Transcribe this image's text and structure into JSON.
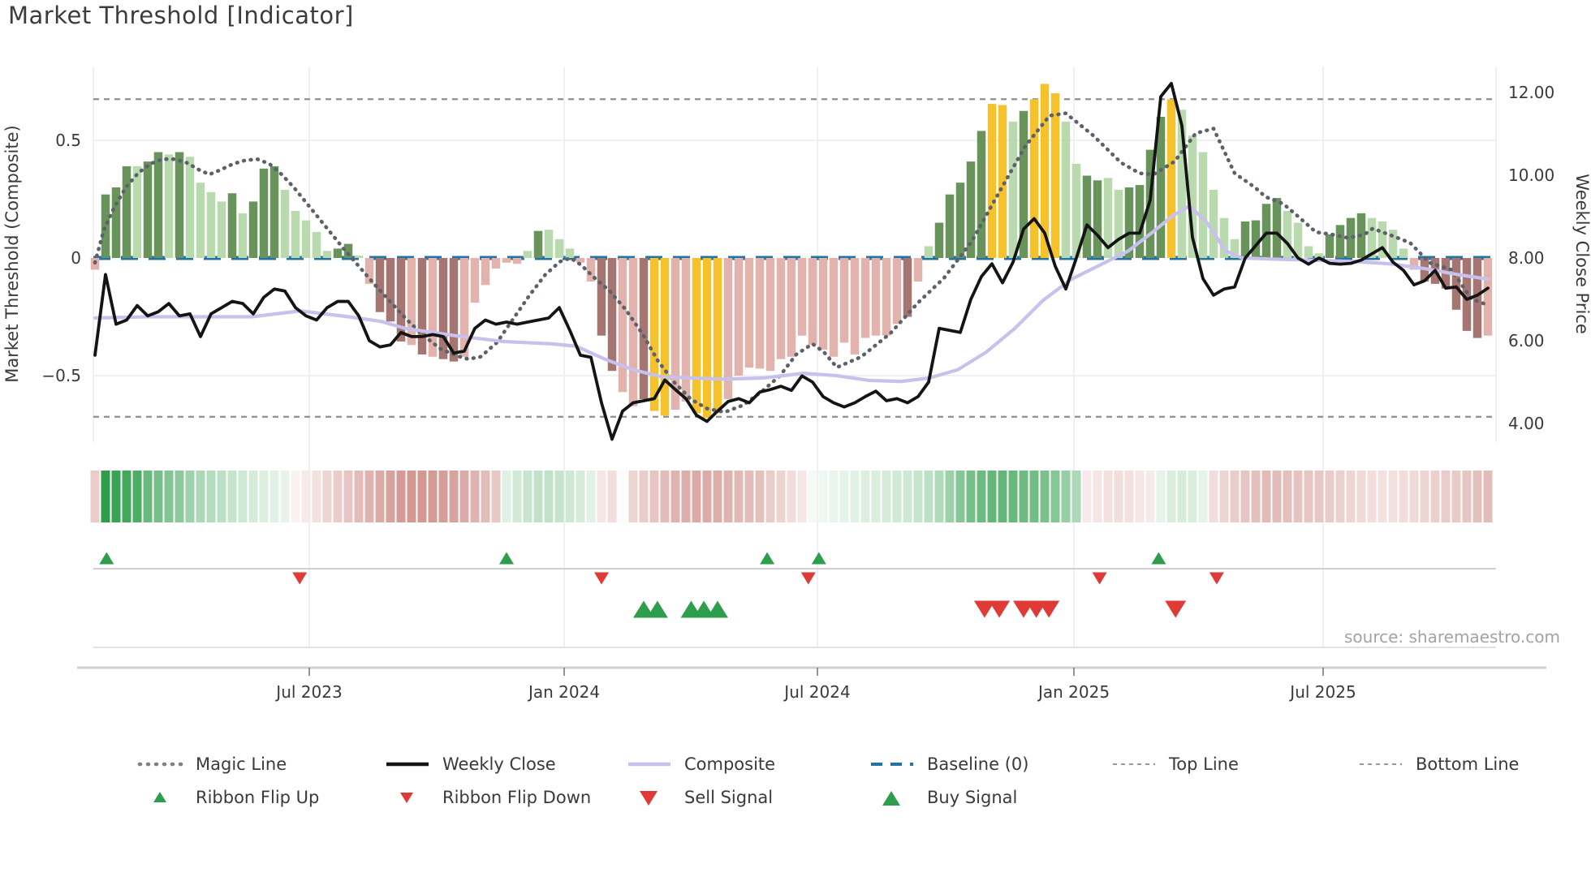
{
  "title": "Market Threshold [Indicator]",
  "source": "source: sharemaestro.com",
  "axes": {
    "left_label": "Market Threshold (Composite)",
    "right_label": "Weekly Close Price",
    "left_ticks": [
      "0.5",
      "0",
      "−0.5"
    ],
    "right_ticks": [
      "12.00",
      "10.00",
      "8.00",
      "6.00",
      "4.00"
    ],
    "x_ticks": [
      "Jul 2023",
      "Jan 2024",
      "Jul 2024",
      "Jan 2025",
      "Jul 2025"
    ]
  },
  "colors": {
    "bar_dark_green": "#68945c",
    "bar_light_green": "#b9d9ae",
    "bar_yellow": "#f6c22b",
    "bar_dark_red": "#a57571",
    "bar_light_pink": "#e2b3ad",
    "baseline_blue": "#2374a5",
    "weekly_close": "#141414",
    "composite": "#c8c1ee",
    "magic": "#5d6169",
    "top_bottom": "#8f8f8f",
    "grid": "#ebebf0",
    "spine": "#cfcfcf",
    "ribbon_green": "#2f9e4a",
    "ribbon_pink": "#c87f78",
    "signal_green": "#2e9e4c",
    "signal_red": "#e03a36",
    "text": "#3a3a3a"
  },
  "legend": {
    "row1": [
      {
        "label": "Magic Line",
        "swatch": "dotted-gray"
      },
      {
        "label": "Weekly Close",
        "swatch": "solid-black"
      },
      {
        "label": "Composite",
        "swatch": "solid-lavender"
      },
      {
        "label": "Baseline (0)",
        "swatch": "dashed-blue"
      },
      {
        "label": "Top Line",
        "swatch": "dashed-gray"
      },
      {
        "label": "Bottom Line",
        "swatch": "dashed-gray"
      }
    ],
    "row2": [
      {
        "label": "Ribbon Flip Up",
        "swatch": "triangle-up-green-small"
      },
      {
        "label": "Ribbon Flip Down",
        "swatch": "triangle-down-red-small"
      },
      {
        "label": "Sell Signal",
        "swatch": "triangle-down-red-large"
      },
      {
        "label": "Buy Signal",
        "swatch": "triangle-up-green-large"
      }
    ]
  },
  "chart_data": {
    "type": "combo-bar-line",
    "x_axis": {
      "tick_labels": [
        "Jul 2023",
        "Jan 2024",
        "Jul 2024",
        "Jan 2025",
        "Jul 2025"
      ],
      "unit": "weeks"
    },
    "ylim_left_composite": [
      -0.78,
      0.81
    ],
    "ylim_right_price": [
      3.55,
      12.63
    ],
    "baseline": 0,
    "top_line": 0.675,
    "bottom_line": -0.675,
    "bar_color_key": {
      "dg": "dark-green",
      "lg": "light-green",
      "y": "yellow-signal",
      "dr": "dark-red",
      "lr": "light-pink"
    },
    "bars": [
      [
        -0.05,
        "lr"
      ],
      [
        0.27,
        "dg"
      ],
      [
        0.3,
        "dg"
      ],
      [
        0.39,
        "dg"
      ],
      [
        0.39,
        "lg"
      ],
      [
        0.41,
        "dg"
      ],
      [
        0.45,
        "dg"
      ],
      [
        0.44,
        "lg"
      ],
      [
        0.45,
        "dg"
      ],
      [
        0.43,
        "lg"
      ],
      [
        0.32,
        "lg"
      ],
      [
        0.28,
        "lg"
      ],
      [
        0.24,
        "lg"
      ],
      [
        0.275,
        "dg"
      ],
      [
        0.19,
        "lg"
      ],
      [
        0.24,
        "dg"
      ],
      [
        0.38,
        "dg"
      ],
      [
        0.39,
        "dg"
      ],
      [
        0.29,
        "lg"
      ],
      [
        0.2,
        "lg"
      ],
      [
        0.16,
        "lg"
      ],
      [
        0.11,
        "lg"
      ],
      [
        0.03,
        "lg"
      ],
      [
        0.04,
        "dg"
      ],
      [
        0.06,
        "dg"
      ],
      [
        0.01,
        "lg"
      ],
      [
        -0.11,
        "lr"
      ],
      [
        -0.23,
        "dr"
      ],
      [
        -0.27,
        "dr"
      ],
      [
        -0.355,
        "dr"
      ],
      [
        -0.37,
        "lr"
      ],
      [
        -0.41,
        "dr"
      ],
      [
        -0.42,
        "lr"
      ],
      [
        -0.43,
        "dr"
      ],
      [
        -0.44,
        "dr"
      ],
      [
        -0.42,
        "lr"
      ],
      [
        -0.19,
        "lr"
      ],
      [
        -0.115,
        "lr"
      ],
      [
        -0.045,
        "lr"
      ],
      [
        -0.02,
        "lr"
      ],
      [
        -0.025,
        "lr"
      ],
      [
        0.03,
        "lg"
      ],
      [
        0.115,
        "dg"
      ],
      [
        0.12,
        "lg"
      ],
      [
        0.08,
        "lg"
      ],
      [
        0.04,
        "lg"
      ],
      [
        -0.02,
        "lr"
      ],
      [
        -0.1,
        "lr"
      ],
      [
        -0.33,
        "dr"
      ],
      [
        -0.48,
        "dr"
      ],
      [
        -0.57,
        "lr"
      ],
      [
        -0.63,
        "lr"
      ],
      [
        -0.6,
        "dr"
      ],
      [
        -0.65,
        "y"
      ],
      [
        -0.67,
        "y"
      ],
      [
        -0.645,
        "lr"
      ],
      [
        -0.61,
        "lr"
      ],
      [
        -0.66,
        "y"
      ],
      [
        -0.68,
        "y"
      ],
      [
        -0.66,
        "y"
      ],
      [
        -0.6,
        "lr"
      ],
      [
        -0.5,
        "lr"
      ],
      [
        -0.466,
        "lr"
      ],
      [
        -0.47,
        "lr"
      ],
      [
        -0.48,
        "lr"
      ],
      [
        -0.43,
        "lr"
      ],
      [
        -0.42,
        "lr"
      ],
      [
        -0.33,
        "lr"
      ],
      [
        -0.37,
        "lr"
      ],
      [
        -0.39,
        "lr"
      ],
      [
        -0.42,
        "lr"
      ],
      [
        -0.36,
        "lr"
      ],
      [
        -0.41,
        "lr"
      ],
      [
        -0.34,
        "lr"
      ],
      [
        -0.33,
        "lr"
      ],
      [
        -0.33,
        "lr"
      ],
      [
        -0.28,
        "lr"
      ],
      [
        -0.25,
        "dr"
      ],
      [
        -0.1,
        "lr"
      ],
      [
        0.05,
        "lg"
      ],
      [
        0.15,
        "dg"
      ],
      [
        0.27,
        "dg"
      ],
      [
        0.32,
        "dg"
      ],
      [
        0.41,
        "dg"
      ],
      [
        0.54,
        "dg"
      ],
      [
        0.655,
        "y"
      ],
      [
        0.65,
        "y"
      ],
      [
        0.58,
        "lg"
      ],
      [
        0.625,
        "dg"
      ],
      [
        0.675,
        "y"
      ],
      [
        0.74,
        "y"
      ],
      [
        0.7,
        "y"
      ],
      [
        0.58,
        "lg"
      ],
      [
        0.4,
        "lg"
      ],
      [
        0.35,
        "dg"
      ],
      [
        0.33,
        "dg"
      ],
      [
        0.34,
        "lg"
      ],
      [
        0.29,
        "lg"
      ],
      [
        0.3,
        "dg"
      ],
      [
        0.31,
        "dg"
      ],
      [
        0.46,
        "dg"
      ],
      [
        0.6,
        "dg"
      ],
      [
        0.675,
        "y"
      ],
      [
        0.63,
        "lg"
      ],
      [
        0.52,
        "lg"
      ],
      [
        0.45,
        "lg"
      ],
      [
        0.29,
        "lg"
      ],
      [
        0.17,
        "lg"
      ],
      [
        0.08,
        "lg"
      ],
      [
        0.155,
        "dg"
      ],
      [
        0.16,
        "dg"
      ],
      [
        0.23,
        "dg"
      ],
      [
        0.255,
        "dg"
      ],
      [
        0.2,
        "lg"
      ],
      [
        0.15,
        "lg"
      ],
      [
        0.05,
        "lg"
      ],
      [
        0.02,
        "lg"
      ],
      [
        0.1,
        "dg"
      ],
      [
        0.14,
        "dg"
      ],
      [
        0.17,
        "dg"
      ],
      [
        0.19,
        "dg"
      ],
      [
        0.17,
        "lg"
      ],
      [
        0.155,
        "lg"
      ],
      [
        0.12,
        "lg"
      ],
      [
        0.04,
        "lg"
      ],
      [
        -0.05,
        "lr"
      ],
      [
        -0.1,
        "dr"
      ],
      [
        -0.11,
        "dr"
      ],
      [
        -0.13,
        "dr"
      ],
      [
        -0.22,
        "dr"
      ],
      [
        -0.31,
        "dr"
      ],
      [
        -0.34,
        "dr"
      ],
      [
        -0.33,
        "lr"
      ]
    ],
    "weekly_close": [
      5.65,
      7.6,
      6.4,
      6.5,
      6.85,
      6.6,
      6.7,
      6.9,
      6.6,
      6.65,
      6.1,
      6.65,
      6.8,
      6.95,
      6.9,
      6.65,
      7.05,
      7.25,
      7.2,
      6.8,
      6.6,
      6.5,
      6.8,
      6.95,
      6.95,
      6.6,
      6.0,
      5.85,
      5.9,
      6.2,
      6.1,
      6.1,
      6.15,
      6.1,
      5.7,
      5.75,
      6.3,
      6.5,
      6.4,
      6.45,
      6.4,
      6.45,
      6.5,
      6.55,
      6.8,
      6.25,
      5.65,
      5.6,
      4.5,
      3.62,
      4.3,
      4.5,
      4.55,
      4.6,
      5.05,
      4.82,
      4.6,
      4.2,
      4.05,
      4.3,
      4.53,
      4.6,
      4.5,
      4.76,
      4.82,
      4.9,
      4.8,
      5.15,
      5.0,
      4.65,
      4.5,
      4.4,
      4.5,
      4.65,
      4.78,
      4.55,
      4.6,
      4.5,
      4.65,
      5.0,
      6.3,
      6.25,
      6.2,
      7.0,
      7.55,
      7.86,
      7.4,
      7.9,
      8.7,
      8.95,
      8.6,
      7.8,
      7.25,
      8.0,
      8.8,
      8.55,
      8.25,
      8.45,
      8.6,
      8.6,
      9.4,
      11.9,
      12.22,
      11.2,
      8.5,
      7.5,
      7.1,
      7.25,
      7.3,
      8.0,
      8.3,
      8.6,
      8.6,
      8.35,
      8.0,
      7.85,
      8.0,
      7.87,
      7.85,
      7.87,
      7.95,
      8.1,
      8.25,
      7.9,
      7.7,
      7.35,
      7.45,
      7.7,
      7.27,
      7.3,
      7.0,
      7.1,
      7.27
    ],
    "composite_points": [
      [
        117,
        -0.255
      ],
      [
        180,
        -0.25
      ],
      [
        260,
        -0.25
      ],
      [
        310,
        -0.25
      ],
      [
        370,
        -0.225
      ],
      [
        430,
        -0.25
      ],
      [
        470,
        -0.27
      ],
      [
        500,
        -0.3
      ],
      [
        560,
        -0.33
      ],
      [
        620,
        -0.355
      ],
      [
        680,
        -0.365
      ],
      [
        710,
        -0.375
      ],
      [
        745,
        -0.43
      ],
      [
        780,
        -0.475
      ],
      [
        815,
        -0.505
      ],
      [
        850,
        -0.51
      ],
      [
        890,
        -0.515
      ],
      [
        940,
        -0.51
      ],
      [
        990,
        -0.49
      ],
      [
        1030,
        -0.5
      ],
      [
        1070,
        -0.52
      ],
      [
        1110,
        -0.525
      ],
      [
        1145,
        -0.51
      ],
      [
        1180,
        -0.475
      ],
      [
        1215,
        -0.4
      ],
      [
        1250,
        -0.3
      ],
      [
        1285,
        -0.18
      ],
      [
        1320,
        -0.09
      ],
      [
        1355,
        -0.03
      ],
      [
        1390,
        0.03
      ],
      [
        1420,
        0.11
      ],
      [
        1445,
        0.18
      ],
      [
        1465,
        0.22
      ],
      [
        1485,
        0.16
      ],
      [
        1510,
        0.03
      ],
      [
        1530,
        0.0
      ],
      [
        1570,
        -0.005
      ],
      [
        1620,
        -0.01
      ],
      [
        1670,
        -0.015
      ],
      [
        1713,
        -0.025
      ],
      [
        1755,
        -0.045
      ],
      [
        1795,
        -0.07
      ],
      [
        1833,
        -0.09
      ]
    ],
    "magic_points": [
      [
        117,
        -0.02
      ],
      [
        128,
        0.12
      ],
      [
        140,
        0.21
      ],
      [
        155,
        0.3
      ],
      [
        170,
        0.36
      ],
      [
        185,
        0.4
      ],
      [
        200,
        0.42
      ],
      [
        215,
        0.42
      ],
      [
        230,
        0.405
      ],
      [
        245,
        0.375
      ],
      [
        258,
        0.355
      ],
      [
        272,
        0.375
      ],
      [
        287,
        0.4
      ],
      [
        302,
        0.415
      ],
      [
        317,
        0.42
      ],
      [
        332,
        0.4
      ],
      [
        347,
        0.355
      ],
      [
        362,
        0.3
      ],
      [
        382,
        0.215
      ],
      [
        402,
        0.13
      ],
      [
        422,
        0.045
      ],
      [
        442,
        -0.035
      ],
      [
        462,
        -0.115
      ],
      [
        482,
        -0.19
      ],
      [
        502,
        -0.265
      ],
      [
        522,
        -0.33
      ],
      [
        542,
        -0.385
      ],
      [
        562,
        -0.415
      ],
      [
        577,
        -0.43
      ],
      [
        592,
        -0.42
      ],
      [
        612,
        -0.36
      ],
      [
        632,
        -0.26
      ],
      [
        652,
        -0.16
      ],
      [
        672,
        -0.07
      ],
      [
        690,
        -0.015
      ],
      [
        703,
        0.0
      ],
      [
        716,
        -0.03
      ],
      [
        731,
        -0.08
      ],
      [
        751,
        -0.14
      ],
      [
        771,
        -0.22
      ],
      [
        791,
        -0.32
      ],
      [
        811,
        -0.44
      ],
      [
        831,
        -0.53
      ],
      [
        851,
        -0.6
      ],
      [
        871,
        -0.64
      ],
      [
        893,
        -0.655
      ],
      [
        916,
        -0.625
      ],
      [
        941,
        -0.56
      ],
      [
        961,
        -0.5
      ],
      [
        981,
        -0.41
      ],
      [
        1001,
        -0.365
      ],
      [
        1015,
        -0.4
      ],
      [
        1031,
        -0.465
      ],
      [
        1061,
        -0.42
      ],
      [
        1097,
        -0.32
      ],
      [
        1131,
        -0.19
      ],
      [
        1163,
        -0.085
      ],
      [
        1197,
        0.07
      ],
      [
        1231,
        0.28
      ],
      [
        1263,
        0.475
      ],
      [
        1293,
        0.605
      ],
      [
        1313,
        0.615
      ],
      [
        1347,
        0.52
      ],
      [
        1381,
        0.405
      ],
      [
        1404,
        0.36
      ],
      [
        1421,
        0.355
      ],
      [
        1447,
        0.41
      ],
      [
        1473,
        0.53
      ],
      [
        1495,
        0.55
      ],
      [
        1521,
        0.36
      ],
      [
        1546,
        0.3
      ],
      [
        1559,
        0.26
      ],
      [
        1581,
        0.23
      ],
      [
        1598,
        0.18
      ],
      [
        1621,
        0.11
      ],
      [
        1641,
        0.1
      ],
      [
        1661,
        0.085
      ],
      [
        1681,
        0.1
      ],
      [
        1691,
        0.125
      ],
      [
        1711,
        0.1
      ],
      [
        1737,
        0.065
      ],
      [
        1761,
        -0.02
      ],
      [
        1788,
        -0.05
      ],
      [
        1813,
        -0.175
      ],
      [
        1833,
        -0.2
      ]
    ],
    "ribbon": [
      -0.3,
      1.0,
      0.95,
      0.9,
      0.85,
      0.72,
      0.66,
      0.6,
      0.55,
      0.46,
      0.4,
      0.36,
      0.32,
      0.28,
      0.24,
      0.2,
      0.17,
      0.14,
      0.11,
      -0.08,
      -0.12,
      -0.18,
      -0.25,
      -0.3,
      -0.35,
      -0.4,
      -0.45,
      -0.5,
      -0.55,
      -0.6,
      -0.62,
      -0.62,
      -0.6,
      -0.58,
      -0.55,
      -0.5,
      -0.45,
      -0.4,
      -0.33,
      0.15,
      0.22,
      0.27,
      0.3,
      0.3,
      0.28,
      0.24,
      0.2,
      0.14,
      -0.15,
      -0.2,
      -0.02,
      -0.25,
      -0.3,
      -0.35,
      -0.4,
      -0.45,
      -0.48,
      -0.5,
      -0.5,
      -0.48,
      -0.45,
      -0.42,
      -0.4,
      -0.38,
      -0.3,
      -0.26,
      -0.2,
      -0.15,
      0.05,
      0.08,
      0.1,
      0.12,
      0.14,
      0.16,
      0.18,
      0.2,
      0.22,
      0.24,
      0.28,
      0.32,
      0.38,
      0.48,
      0.58,
      0.66,
      0.7,
      0.74,
      0.75,
      0.72,
      0.7,
      0.68,
      0.64,
      0.58,
      0.5,
      0.4,
      -0.12,
      -0.15,
      -0.18,
      -0.2,
      -0.18,
      -0.15,
      -0.12,
      0.12,
      0.18,
      0.2,
      0.18,
      0.12,
      -0.2,
      -0.25,
      -0.3,
      -0.35,
      -0.38,
      -0.4,
      -0.4,
      -0.38,
      -0.36,
      -0.35,
      -0.33,
      -0.3,
      -0.28,
      -0.25,
      -0.22,
      -0.2,
      -0.18,
      -0.18,
      -0.2,
      -0.22,
      -0.25,
      -0.28,
      -0.3,
      -0.32,
      -0.35,
      -0.38,
      -0.4
    ],
    "signals": {
      "ribbon_flip_up_weeks": [
        1.1,
        39,
        63.7,
        68.6,
        100.8
      ],
      "ribbon_flip_down_weeks": [
        19.4,
        48,
        67.6,
        95.2,
        106.3
      ],
      "buy_signal_weeks": [
        52,
        53.3,
        56.5,
        57.7,
        59
      ],
      "sell_signal_weeks": [
        84.3,
        85.7,
        88,
        89.2,
        90.4,
        102.4
      ]
    }
  }
}
